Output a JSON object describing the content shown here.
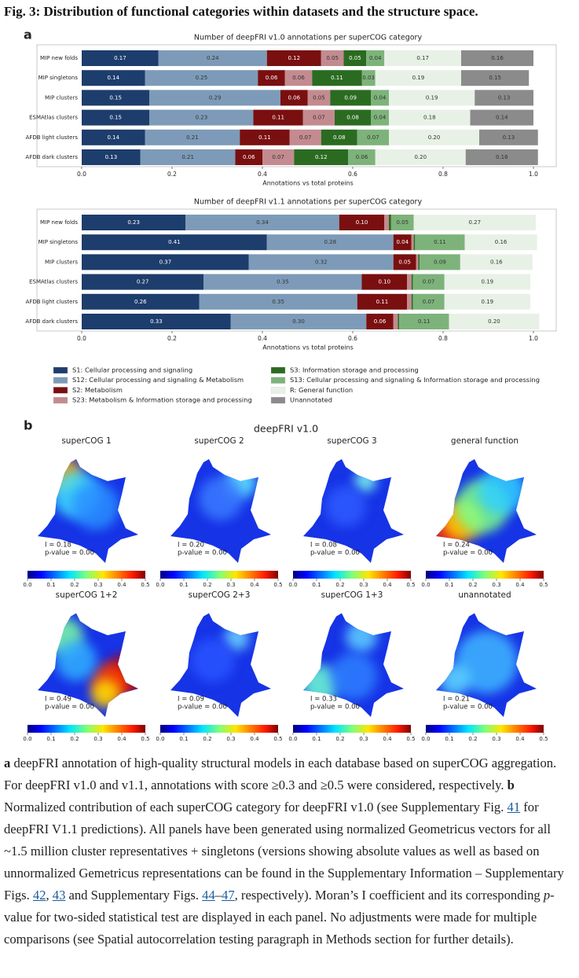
{
  "header": {
    "title": "Fig. 3: Distribution of functional categories within datasets and the structure space."
  },
  "panel_labels": [
    "a",
    "b"
  ],
  "chart_data": [
    {
      "type": "stacked-bar",
      "orientation": "horizontal",
      "title": "Number of deepFRI v1.0 annotations per superCOG category",
      "xlabel": "Annotations vs total proteins",
      "categories": [
        "MIP new folds",
        "MIP singletons",
        "MIP clusters",
        "ESMAtlas clusters",
        "AFDB light clusters",
        "AFDB dark clusters"
      ],
      "series": [
        {
          "name": "S1: Cellular processing and signaling",
          "color": "#1d3d6c",
          "values": [
            0.17,
            0.14,
            0.15,
            0.15,
            0.14,
            0.13
          ],
          "value_labels": [
            "0.17",
            "0.14",
            "0.15",
            "0.15",
            "0.14",
            "0.13"
          ]
        },
        {
          "name": "S12: Cellular processing and signaling & Metabolism",
          "color": "#7d9bb8",
          "values": [
            0.24,
            0.25,
            0.29,
            0.23,
            0.21,
            0.21
          ],
          "value_labels": [
            "0.24",
            "0.25",
            "0.29",
            "0.23",
            "0.21",
            "0.21"
          ]
        },
        {
          "name": "S2: Metabolism",
          "color": "#7a0f10",
          "values": [
            0.12,
            0.06,
            0.06,
            0.11,
            0.11,
            0.06
          ],
          "value_labels": [
            "0.12",
            "0.06",
            "0.06",
            "0.11",
            "0.11",
            "0.06"
          ]
        },
        {
          "name": "S23: Metabolism & Information storage and processing",
          "color": "#c38b8f",
          "values": [
            0.05,
            0.06,
            0.05,
            0.07,
            0.07,
            0.07
          ],
          "value_labels": [
            "0.05",
            "0.06",
            "0.05",
            "0.07",
            "0.07",
            "0.07"
          ]
        },
        {
          "name": "S3: Information storage and processing",
          "color": "#2b6b21",
          "values": [
            0.05,
            0.11,
            0.09,
            0.08,
            0.08,
            0.12
          ],
          "value_labels": [
            "0.05",
            "0.11",
            "0.09",
            "0.08",
            "0.08",
            "0.12"
          ]
        },
        {
          "name": "S13: Cellular processing and signaling & Information storage and processing",
          "color": "#7db37a",
          "values": [
            0.04,
            0.03,
            0.04,
            0.04,
            0.07,
            0.06
          ],
          "value_labels": [
            "0.04",
            "0.03",
            "0.04",
            "0.04",
            "0.07",
            "0.06"
          ]
        },
        {
          "name": "R: General function",
          "color": "#e8f1e6",
          "values": [
            0.17,
            0.19,
            0.19,
            0.18,
            0.2,
            0.2
          ],
          "value_labels": [
            "0.17",
            "0.19",
            "0.19",
            "0.18",
            "0.20",
            "0.20"
          ]
        },
        {
          "name": "Unannotated",
          "color": "#8b8b8b",
          "values": [
            0.16,
            0.15,
            0.13,
            0.14,
            0.13,
            0.16
          ],
          "value_labels": [
            "0.16",
            "0.15",
            "0.13",
            "0.14",
            "0.13",
            "0.16"
          ]
        }
      ],
      "xlim": [
        0,
        1
      ],
      "xticks": [
        {
          "value": 0,
          "label": "0.0"
        },
        {
          "value": 0.2,
          "label": "0.2"
        },
        {
          "value": 0.4,
          "label": "0.4"
        },
        {
          "value": 0.6,
          "label": "0.6"
        },
        {
          "value": 0.8,
          "label": "0.8"
        },
        {
          "value": 1,
          "label": "1.0"
        }
      ],
      "legend": "below"
    },
    {
      "type": "stacked-bar",
      "orientation": "horizontal",
      "title": "Number of deepFRI v1.1 annotations per superCOG category",
      "xlabel": "Annotations vs total proteins",
      "categories": [
        "MIP new folds",
        "MIP singletons",
        "MIP clusters",
        "ESMAtlas clusters",
        "AFDB light clusters",
        "AFDB dark clusters"
      ],
      "series": [
        {
          "color": "#1d3d6c",
          "values": [
            0.23,
            0.41,
            0.37,
            0.27,
            0.26,
            0.33
          ],
          "value_labels": [
            "0.23",
            "0.41",
            "0.37",
            "0.27",
            "0.26",
            "0.33"
          ]
        },
        {
          "color": "#7d9bb8",
          "values": [
            0.34,
            0.28,
            0.32,
            0.35,
            0.35,
            0.3
          ],
          "value_labels": [
            "0.34",
            "0.28",
            "0.32",
            "0.35",
            "0.35",
            "0.30"
          ]
        },
        {
          "color": "#7a0f10",
          "values": [
            0.1,
            0.04,
            0.05,
            0.1,
            0.11,
            0.06
          ],
          "value_labels": [
            "0.10",
            "0.04",
            "0.05",
            "0.10",
            "0.11",
            "0.06"
          ]
        },
        {
          "color": "#c38b8f",
          "values": [
            0.01,
            0.005,
            0.005,
            0.01,
            0.01,
            0.01
          ],
          "value_labels": [
            null,
            null,
            null,
            null,
            null,
            null
          ]
        },
        {
          "color": "#2b6b21",
          "values": [
            0.005,
            0.003,
            0.003,
            0.003,
            0.003,
            0.003
          ],
          "value_labels": [
            null,
            null,
            null,
            null,
            null,
            null
          ]
        },
        {
          "color": "#7db37a",
          "values": [
            0.05,
            0.11,
            0.09,
            0.07,
            0.07,
            0.11
          ],
          "value_labels": [
            "0.05",
            "0.11",
            "0.09",
            "0.07",
            "0.07",
            "0.11"
          ]
        },
        {
          "color": "#e8f1e6",
          "values": [
            0.27,
            0.16,
            0.16,
            0.19,
            0.19,
            0.2
          ],
          "value_labels": [
            "0.27",
            "0.16",
            "0.16",
            "0.19",
            "0.19",
            "0.20"
          ]
        },
        {
          "color": "#8b8b8b",
          "values": [
            0,
            0,
            0,
            0,
            0,
            0
          ],
          "value_labels": [
            null,
            null,
            null,
            null,
            null,
            null
          ]
        }
      ],
      "xlim": [
        0,
        1
      ],
      "xticks": [
        {
          "value": 0,
          "label": "0.0"
        },
        {
          "value": 0.2,
          "label": "0.2"
        },
        {
          "value": 0.4,
          "label": "0.4"
        },
        {
          "value": 0.6,
          "label": "0.6"
        },
        {
          "value": 0.8,
          "label": "0.8"
        },
        {
          "value": 1,
          "label": "1.0"
        }
      ]
    },
    {
      "type": "map-grid",
      "title": "deepFRI v1.0",
      "panels": [
        {
          "title": "superCOG 1",
          "stat": "I = 0.18",
          "pvalue": "p-value = 0.00"
        },
        {
          "title": "superCOG 2",
          "stat": "I = 0.20",
          "pvalue": "p-value = 0.00"
        },
        {
          "title": "superCOG 3",
          "stat": "I = 0.08",
          "pvalue": "p-value = 0.00"
        },
        {
          "title": "general function",
          "stat": "I = 0.24",
          "pvalue": "p-value = 0.00"
        },
        {
          "title": "superCOG 1+2",
          "stat": "I = 0.49",
          "pvalue": "p-value = 0.00"
        },
        {
          "title": "superCOG 2+3",
          "stat": "I = 0.09",
          "pvalue": "p-value = 0.00"
        },
        {
          "title": "superCOG 1+3",
          "stat": "I = 0.33",
          "pvalue": "p-value = 0.00"
        },
        {
          "title": "unannotated",
          "stat": "I = 0.21",
          "pvalue": "p-value = 0.00"
        }
      ],
      "colorbar_lim": [
        0,
        0.5
      ],
      "colorbar_ticks": [
        {
          "value": 0,
          "label": "0.0"
        },
        {
          "value": 0.1,
          "label": "0.1"
        },
        {
          "value": 0.2,
          "label": "0.2"
        },
        {
          "value": 0.3,
          "label": "0.3"
        },
        {
          "value": 0.4,
          "label": "0.4"
        },
        {
          "value": 0.5,
          "label": "0.5"
        }
      ]
    }
  ],
  "caption": {
    "parts": [
      "a",
      " deepFRI annotation of high-quality structural models in each database based on superCOG aggregation. For deepFRI v1.0 and v1.1, annotations with score ≥0.3 and ≥0.5 were considered, respectively. ",
      "b",
      " Normalized contribution of each superCOG category for deepFRI v1.0 (see Supplementary Fig. ",
      "41",
      " for deepFRI V1.1 predictions). All panels have been generated using normalized Geometricus vectors for all ~1.5 million cluster representatives + singletons (versions showing absolute values as well as based on unnormalized Gemetricus representations can be found in the Supplementary Information – Supplementary Figs. ",
      "42",
      ", ",
      "43",
      " and Supplementary Figs. ",
      "44",
      "–",
      "47",
      ", respectively). Moran’s I coefficient and its corresponding ",
      "p",
      "-value for two-sided statistical test are displayed in each panel. No adjustments were made for multiple comparisons (see Spatial autocorrelation testing paragraph in Methods section for further details)."
    ]
  }
}
